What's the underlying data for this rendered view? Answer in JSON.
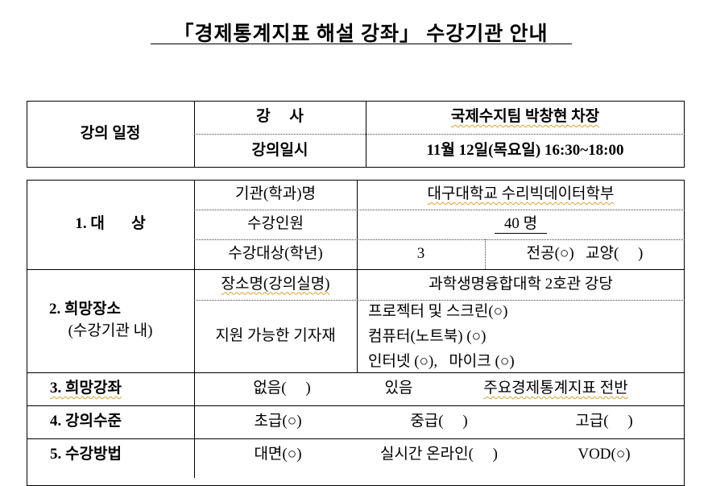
{
  "title": "「경제통계지표 해설 강좌」 수강기관 안내",
  "schedule": {
    "label": "강의 일정",
    "rows": [
      {
        "label": "강     사",
        "value": "국제수지팀 박창현 차장"
      },
      {
        "label": "강의일시",
        "value": "11월 12일(목요일) 16:30~18:00"
      }
    ]
  },
  "target": {
    "label": "1. 대       상",
    "institution_label": "기관(학과)명",
    "institution_value": "대구대학교 수리빅데이터학부",
    "count_label": "수강인원",
    "count_value": "40 명",
    "grade_label": "수강대상(학년)",
    "grade_value": "3",
    "type_value": "전공(○)   교양(     )"
  },
  "place": {
    "label": "2. 희망장소",
    "sublabel": "(수강기관 내)",
    "room_label": "장소명(강의실명)",
    "room_value": "과학생명융합대학 2호관 강당",
    "equipment_label": "지원 가능한 기자재",
    "equipment": [
      "프로젝터 및 스크린(○)",
      "컴퓨터(노트북) (○)",
      "인터넷 (○),   마이크 (○)"
    ]
  },
  "course": {
    "label": "3. 희망강좌",
    "none": "없음(     )",
    "yes": "있음",
    "value": "주요경제통계지표 전반"
  },
  "level": {
    "label": "4. 강의수준",
    "options": [
      "초급(○)",
      "중급(     )",
      "고급(     )"
    ]
  },
  "method": {
    "label": "5. 수강방법",
    "options": [
      "대면(○)",
      "실시간 온라인(     )",
      "VOD(○)"
    ]
  }
}
